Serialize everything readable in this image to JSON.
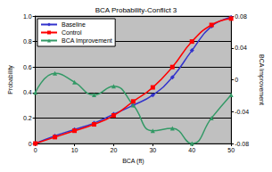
{
  "chart_data": {
    "type": "line",
    "title": "BCA Probability-Conflict 3",
    "x_label": "BCA (ft)",
    "y_label": "Probability",
    "y2_label": "BCA Improvement",
    "x": [
      0,
      5,
      10,
      15,
      20,
      25,
      30,
      35,
      40,
      45,
      50
    ],
    "series": [
      {
        "name": "Baseline",
        "color": "#3333cc",
        "marker": "diamond",
        "line_style": "solid",
        "values": [
          0,
          0.06,
          0.11,
          0.16,
          0.23,
          0.3,
          0.38,
          0.52,
          0.73,
          0.92,
          0.99
        ]
      },
      {
        "name": "Control",
        "color": "#ff0000",
        "marker": "square",
        "line_style": "solid",
        "values": [
          0,
          0.05,
          0.1,
          0.15,
          0.22,
          0.33,
          0.44,
          0.6,
          0.8,
          0.93,
          0.98
        ]
      },
      {
        "name": "BCA Improvement",
        "color": "#339966",
        "marker": "triangle",
        "line_style": "solid",
        "axis": "y2",
        "values": [
          -0.016,
          0.008,
          -0.003,
          -0.019,
          -0.008,
          -0.032,
          -0.064,
          -0.061,
          -0.08,
          -0.048,
          -0.019
        ]
      }
    ],
    "xlim": [
      0,
      50
    ],
    "xticks": [
      0,
      10,
      20,
      30,
      40,
      50
    ],
    "ylim": [
      0,
      1
    ],
    "yticks": [
      0,
      0.2,
      0.4,
      0.6,
      0.8,
      {
        "value": 1,
        "label": "1.0"
      }
    ],
    "y2lim": [
      -0.08,
      0.08
    ],
    "y2ticks": [
      -0.08,
      -0.04,
      0,
      0.04,
      0.08
    ],
    "grid": true,
    "legend": "upper left"
  }
}
